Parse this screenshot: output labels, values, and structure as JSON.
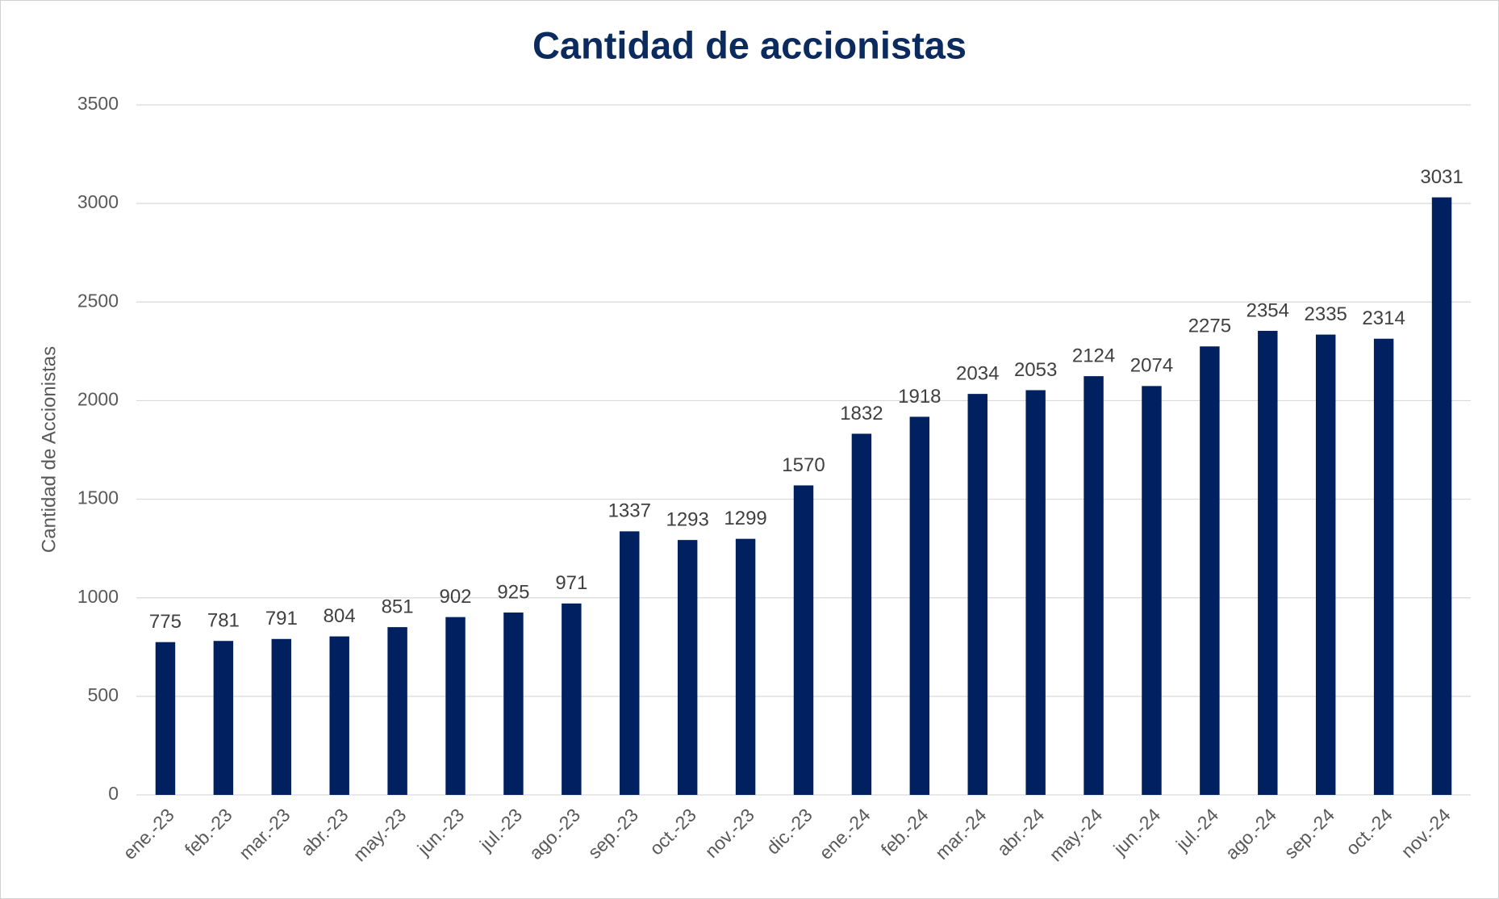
{
  "chart_data": {
    "type": "bar",
    "title": "Cantidad de accionistas",
    "ylabel": "Cantidad de Accionistas",
    "categories": [
      "ene.-23",
      "feb.-23",
      "mar.-23",
      "abr.-23",
      "may.-23",
      "jun.-23",
      "jul.-23",
      "ago.-23",
      "sep.-23",
      "oct.-23",
      "nov.-23",
      "dic.-23",
      "ene.-24",
      "feb.-24",
      "mar.-24",
      "abr.-24",
      "may.-24",
      "jun.-24",
      "jul.-24",
      "ago.-24",
      "sep.-24",
      "oct.-24",
      "nov.-24"
    ],
    "values": [
      775,
      781,
      791,
      804,
      851,
      902,
      925,
      971,
      1337,
      1293,
      1299,
      1570,
      1832,
      1918,
      2034,
      2053,
      2124,
      2074,
      2275,
      2354,
      2335,
      2314,
      3031
    ],
    "color": "#002060",
    "ylim": [
      0,
      3500
    ],
    "yticks": [
      0,
      500,
      1000,
      1500,
      2000,
      2500,
      3000,
      3500
    ],
    "grid": true
  }
}
